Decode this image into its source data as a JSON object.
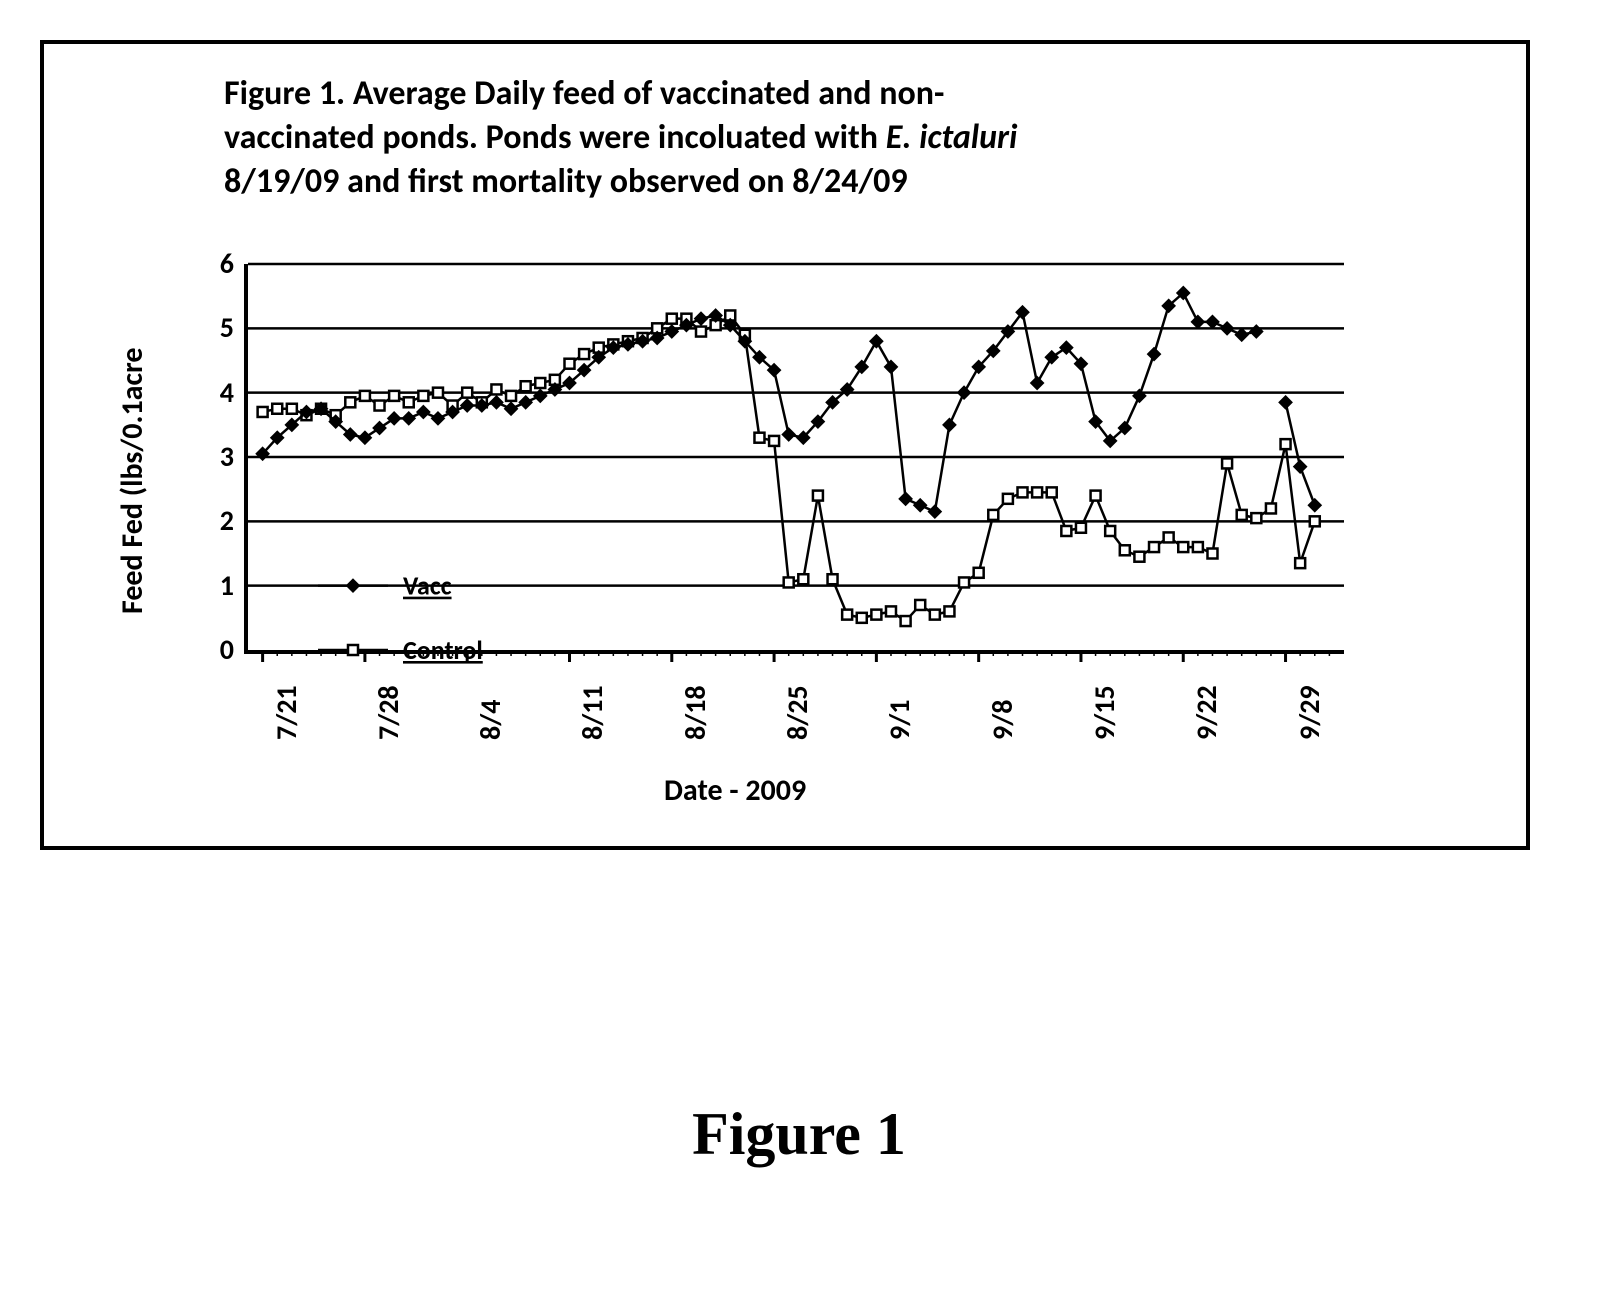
{
  "figure": {
    "caption_big": "Figure 1",
    "title_line1": "Figure 1.  Average Daily feed of vaccinated and non-",
    "title_line2_a": "vaccinated ponds.  Ponds were incoluated with ",
    "title_line2_italic": "E. ictaluri",
    "title_line3": "8/19/09 and first mortality observed on 8/24/09",
    "y_axis_label": "Feed Fed (lbs/0.1acre",
    "x_axis_label": "Date - 2009",
    "ylim": [
      0,
      6
    ],
    "ytick_step": 1,
    "yticks": [
      0,
      1,
      2,
      3,
      4,
      5,
      6
    ],
    "x_major_ticks": [
      1,
      8,
      15,
      22,
      29,
      36,
      43,
      50,
      57,
      64,
      71
    ],
    "x_major_labels": [
      "7/21",
      "7/28",
      "8/4",
      "8/11",
      "8/18",
      "8/25",
      "9/1",
      "9/8",
      "9/15",
      "9/22",
      "9/29"
    ],
    "x_minor_step": 1,
    "x_range": [
      0,
      75
    ],
    "type": "line",
    "background_color": "#ffffff",
    "grid_color": "#000000",
    "axis_color": "#000000",
    "line_width": 2.5,
    "marker_size": 10,
    "legend": {
      "position": "inside-lower-left",
      "items": [
        {
          "key": "vacc",
          "label": "Vacc",
          "marker": "diamond-filled"
        },
        {
          "key": "control",
          "label": "Control",
          "marker": "square-open"
        }
      ]
    },
    "series": {
      "vacc": {
        "label": "Vacc",
        "color": "#000000",
        "marker": "diamond-filled",
        "x": [
          1,
          2,
          3,
          4,
          5,
          6,
          7,
          8,
          9,
          10,
          11,
          12,
          13,
          14,
          15,
          16,
          17,
          18,
          19,
          20,
          21,
          22,
          23,
          24,
          25,
          26,
          27,
          28,
          29,
          30,
          31,
          32,
          33,
          34,
          35,
          36,
          37,
          38,
          39,
          40,
          41,
          42,
          43,
          44,
          45,
          46,
          47,
          48,
          49,
          50,
          51,
          52,
          53,
          54,
          55,
          56,
          57,
          58,
          59,
          60,
          61,
          62,
          63,
          64,
          65,
          66,
          67,
          68,
          69,
          70,
          71,
          72,
          73
        ],
        "y": [
          3.05,
          3.3,
          3.5,
          3.7,
          3.75,
          3.55,
          3.35,
          3.3,
          3.45,
          3.6,
          3.6,
          3.7,
          3.6,
          3.7,
          3.8,
          3.8,
          3.85,
          3.75,
          3.85,
          3.95,
          4.05,
          4.15,
          4.35,
          4.55,
          4.7,
          4.75,
          4.8,
          4.85,
          4.95,
          5.05,
          5.15,
          5.2,
          5.05,
          4.8,
          4.55,
          4.35,
          3.35,
          3.3,
          3.55,
          3.85,
          4.05,
          4.4,
          4.8,
          4.4,
          2.35,
          2.25,
          2.15,
          3.5,
          4.0,
          4.4,
          4.65,
          4.95,
          5.25,
          4.15,
          4.55,
          4.7,
          4.45,
          3.55,
          3.25,
          3.45,
          3.95,
          4.6,
          5.35,
          5.55,
          5.1,
          5.1,
          5.0,
          4.9,
          4.95,
          null,
          3.85,
          2.85,
          2.25
        ]
      },
      "control": {
        "label": "Control",
        "color": "#000000",
        "marker": "square-open",
        "x": [
          1,
          2,
          3,
          4,
          5,
          6,
          7,
          8,
          9,
          10,
          11,
          12,
          13,
          14,
          15,
          16,
          17,
          18,
          19,
          20,
          21,
          22,
          23,
          24,
          25,
          26,
          27,
          28,
          29,
          30,
          31,
          32,
          33,
          34,
          35,
          36,
          37,
          38,
          39,
          40,
          41,
          42,
          43,
          44,
          45,
          46,
          47,
          48,
          49,
          50,
          51,
          52,
          53,
          54,
          55,
          56,
          57,
          58,
          59,
          60,
          61,
          62,
          63,
          64,
          65,
          66,
          67,
          68,
          69,
          70,
          71,
          72,
          73
        ],
        "y": [
          3.7,
          3.75,
          3.75,
          3.65,
          3.75,
          3.65,
          3.85,
          3.95,
          3.8,
          3.95,
          3.85,
          3.95,
          4.0,
          3.8,
          4.0,
          3.85,
          4.05,
          3.95,
          4.1,
          4.15,
          4.2,
          4.45,
          4.6,
          4.7,
          4.75,
          4.8,
          4.85,
          5.0,
          5.15,
          5.15,
          4.95,
          5.05,
          5.2,
          4.9,
          3.3,
          3.25,
          1.05,
          1.1,
          2.4,
          1.1,
          0.55,
          0.5,
          0.55,
          0.6,
          0.45,
          0.7,
          0.55,
          0.6,
          1.05,
          1.2,
          2.1,
          2.35,
          2.45,
          2.45,
          2.45,
          1.85,
          1.9,
          2.4,
          1.85,
          1.55,
          1.45,
          1.6,
          1.75,
          1.6,
          1.6,
          1.5,
          2.9,
          2.1,
          2.05,
          2.2,
          3.2,
          1.35,
          2.0
        ]
      }
    }
  }
}
